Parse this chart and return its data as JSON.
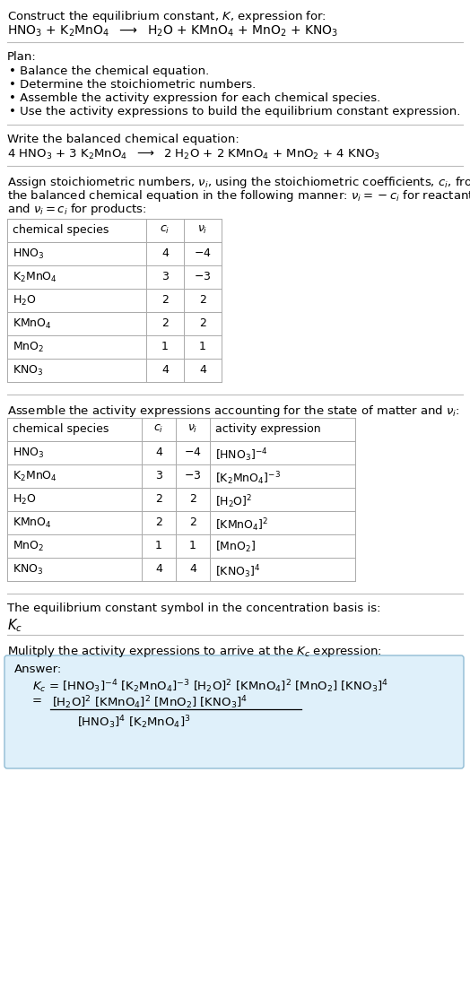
{
  "title_line1": "Construct the equilibrium constant, $K$, expression for:",
  "title_line2": "HNO$_3$ + K$_2$MnO$_4$  $\\longrightarrow$  H$_2$O + KMnO$_4$ + MnO$_2$ + KNO$_3$",
  "plan_header": "Plan:",
  "plan_items": [
    "• Balance the chemical equation.",
    "• Determine the stoichiometric numbers.",
    "• Assemble the activity expression for each chemical species.",
    "• Use the activity expressions to build the equilibrium constant expression."
  ],
  "balanced_header": "Write the balanced chemical equation:",
  "balanced_eq": "4 HNO$_3$ + 3 K$_2$MnO$_4$  $\\longrightarrow$  2 H$_2$O + 2 KMnO$_4$ + MnO$_2$ + 4 KNO$_3$",
  "stoich_header_lines": [
    "Assign stoichiometric numbers, $\\nu_i$, using the stoichiometric coefficients, $c_i$, from",
    "the balanced chemical equation in the following manner: $\\nu_i = -c_i$ for reactants",
    "and $\\nu_i = c_i$ for products:"
  ],
  "table1_cols": [
    "chemical species",
    "$c_i$",
    "$\\nu_i$"
  ],
  "table1_rows": [
    [
      "HNO$_3$",
      "4",
      "$-4$"
    ],
    [
      "K$_2$MnO$_4$",
      "3",
      "$-3$"
    ],
    [
      "H$_2$O",
      "2",
      "2"
    ],
    [
      "KMnO$_4$",
      "2",
      "2"
    ],
    [
      "MnO$_2$",
      "1",
      "1"
    ],
    [
      "KNO$_3$",
      "4",
      "4"
    ]
  ],
  "activity_header": "Assemble the activity expressions accounting for the state of matter and $\\nu_i$:",
  "table2_cols": [
    "chemical species",
    "$c_i$",
    "$\\nu_i$",
    "activity expression"
  ],
  "table2_rows": [
    [
      "HNO$_3$",
      "4",
      "$-4$",
      "[HNO$_3$]$^{-4}$"
    ],
    [
      "K$_2$MnO$_4$",
      "3",
      "$-3$",
      "[K$_2$MnO$_4$]$^{-3}$"
    ],
    [
      "H$_2$O",
      "2",
      "2",
      "[H$_2$O]$^2$"
    ],
    [
      "KMnO$_4$",
      "2",
      "2",
      "[KMnO$_4$]$^2$"
    ],
    [
      "MnO$_2$",
      "1",
      "1",
      "[MnO$_2$]"
    ],
    [
      "KNO$_3$",
      "4",
      "4",
      "[KNO$_3$]$^4$"
    ]
  ],
  "kc_header": "The equilibrium constant symbol in the concentration basis is:",
  "kc_symbol": "$K_c$",
  "multiply_header": "Mulitply the activity expressions to arrive at the $K_c$ expression:",
  "answer_label": "Answer:",
  "answer_line1": "$K_c$ = [HNO$_3$]$^{-4}$ [K$_2$MnO$_4$]$^{-3}$ [H$_2$O]$^2$ [KMnO$_4$]$^2$ [MnO$_2$] [KNO$_3$]$^4$",
  "answer_eq_sign": "=",
  "answer_line2_num": "[H$_2$O]$^2$ [KMnO$_4$]$^2$ [MnO$_2$] [KNO$_3$]$^4$",
  "answer_line2_den": "[HNO$_3$]$^4$ [K$_2$MnO$_4$]$^3$",
  "bg_color": "#ffffff",
  "answer_box_color": "#dff0fa",
  "answer_box_border": "#90bcd4",
  "table_line_color": "#aaaaaa",
  "text_color": "#000000",
  "font_size": 9.5
}
